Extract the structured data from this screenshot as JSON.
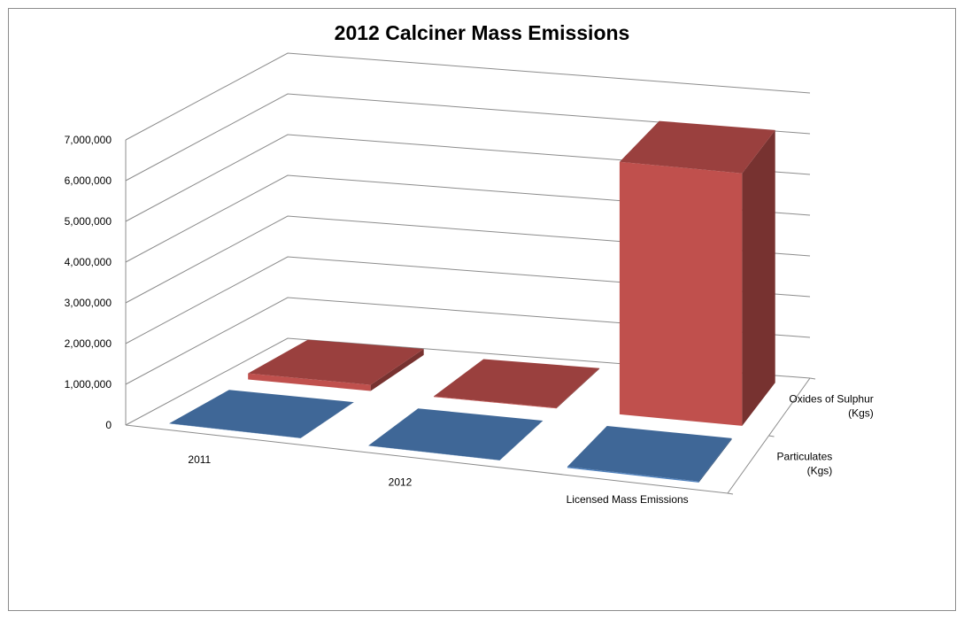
{
  "chart_data": {
    "type": "bar",
    "title": "2012 Calciner Mass Emissions",
    "categories": [
      "2011",
      "2012",
      "Licensed Mass Emissions"
    ],
    "series": [
      {
        "name": "Particulates (Kgs)",
        "values": [
          5000,
          5000,
          30000
        ],
        "color": "#4f81bd"
      },
      {
        "name": "Oxides of Sulphur (Kgs)",
        "values": [
          150000,
          15000,
          6200000
        ],
        "color": "#c0504d"
      }
    ],
    "depth_labels": [
      [
        "Particulates",
        "(Kgs)"
      ],
      [
        "Oxides of Sulphur",
        "(Kgs)"
      ]
    ],
    "y_ticks": [
      "0",
      "1,000,000",
      "2,000,000",
      "3,000,000",
      "4,000,000",
      "5,000,000",
      "6,000,000",
      "7,000,000"
    ],
    "ylim": [
      0,
      7000000
    ],
    "grid": true,
    "legend": "none"
  }
}
